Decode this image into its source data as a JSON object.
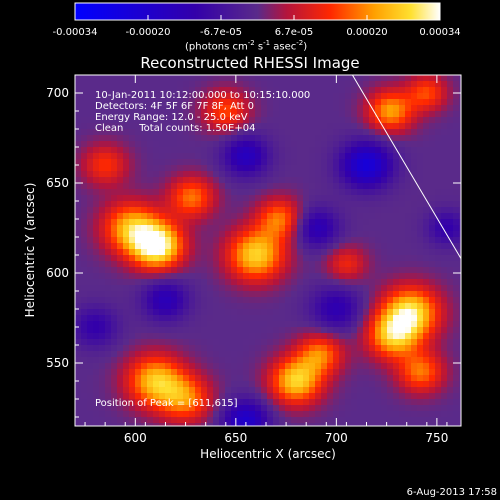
{
  "chart_data": {
    "type": "heatmap",
    "title": "Reconstructed RHESSI Image",
    "xlabel": "Heliocentric X (arcsec)",
    "ylabel": "Heliocentric Y (arcsec)",
    "xlim": [
      570,
      762
    ],
    "ylim": [
      515,
      710
    ],
    "xticks": [
      600,
      650,
      700,
      750
    ],
    "yticks": [
      550,
      600,
      650,
      700
    ],
    "colorbar": {
      "range": [
        -0.00034,
        0.00034
      ],
      "ticks": [
        "-0.00034",
        "-0.00020",
        "-6.7e-05",
        "6.7e-05",
        "0.00020",
        "0.00034"
      ],
      "units_main": "(photons cm",
      "units_exp1": "-2",
      "units_mid": " s",
      "units_exp2": "-1",
      "units_mid2": " asec",
      "units_exp3": "-2",
      "units_end": ")"
    },
    "annotations": {
      "date": "10-Jan-2011 10:12:00.000 to 10:15:10.000",
      "detectors": "Detectors: 4F 5F 6F 7F 8F, Att 0",
      "energy": "Energy Range: 12.0 - 25.0 keV",
      "clean": "Clean     Total counts: 1.50E+04",
      "peak": "Position of Peak = [611,615]"
    },
    "limb": [
      [
        708,
        710
      ],
      [
        762,
        608
      ]
    ],
    "sources": [
      {
        "x": 611,
        "y": 615,
        "amp": 1.0,
        "sigma": 9
      },
      {
        "x": 598,
        "y": 625,
        "amp": 0.7,
        "sigma": 10
      },
      {
        "x": 628,
        "y": 642,
        "amp": 0.55,
        "sigma": 8
      },
      {
        "x": 660,
        "y": 610,
        "amp": 0.8,
        "sigma": 10
      },
      {
        "x": 672,
        "y": 630,
        "amp": 0.55,
        "sigma": 8
      },
      {
        "x": 737,
        "y": 578,
        "amp": 0.85,
        "sigma": 10
      },
      {
        "x": 728,
        "y": 565,
        "amp": 0.7,
        "sigma": 9
      },
      {
        "x": 742,
        "y": 545,
        "amp": 0.55,
        "sigma": 8
      },
      {
        "x": 610,
        "y": 540,
        "amp": 0.75,
        "sigma": 10
      },
      {
        "x": 625,
        "y": 530,
        "amp": 0.55,
        "sigma": 9
      },
      {
        "x": 680,
        "y": 540,
        "amp": 0.8,
        "sigma": 9
      },
      {
        "x": 692,
        "y": 555,
        "amp": 0.55,
        "sigma": 8
      },
      {
        "x": 727,
        "y": 690,
        "amp": 0.65,
        "sigma": 8
      },
      {
        "x": 745,
        "y": 700,
        "amp": 0.45,
        "sigma": 7
      },
      {
        "x": 645,
        "y": 690,
        "amp": 0.45,
        "sigma": 8
      },
      {
        "x": 585,
        "y": 660,
        "amp": 0.4,
        "sigma": 8
      },
      {
        "x": 705,
        "y": 605,
        "amp": 0.35,
        "sigma": 7
      },
      {
        "x": 655,
        "y": 665,
        "amp": -0.5,
        "sigma": 8
      },
      {
        "x": 715,
        "y": 660,
        "amp": -0.7,
        "sigma": 9
      },
      {
        "x": 615,
        "y": 585,
        "amp": -0.45,
        "sigma": 8
      },
      {
        "x": 690,
        "y": 625,
        "amp": -0.45,
        "sigma": 8
      },
      {
        "x": 655,
        "y": 518,
        "amp": -0.6,
        "sigma": 8
      },
      {
        "x": 700,
        "y": 580,
        "amp": -0.4,
        "sigma": 9
      },
      {
        "x": 755,
        "y": 625,
        "amp": -0.35,
        "sigma": 7
      },
      {
        "x": 580,
        "y": 570,
        "amp": -0.35,
        "sigma": 8
      }
    ]
  },
  "timestamp": "6-Aug-2013 17:58"
}
